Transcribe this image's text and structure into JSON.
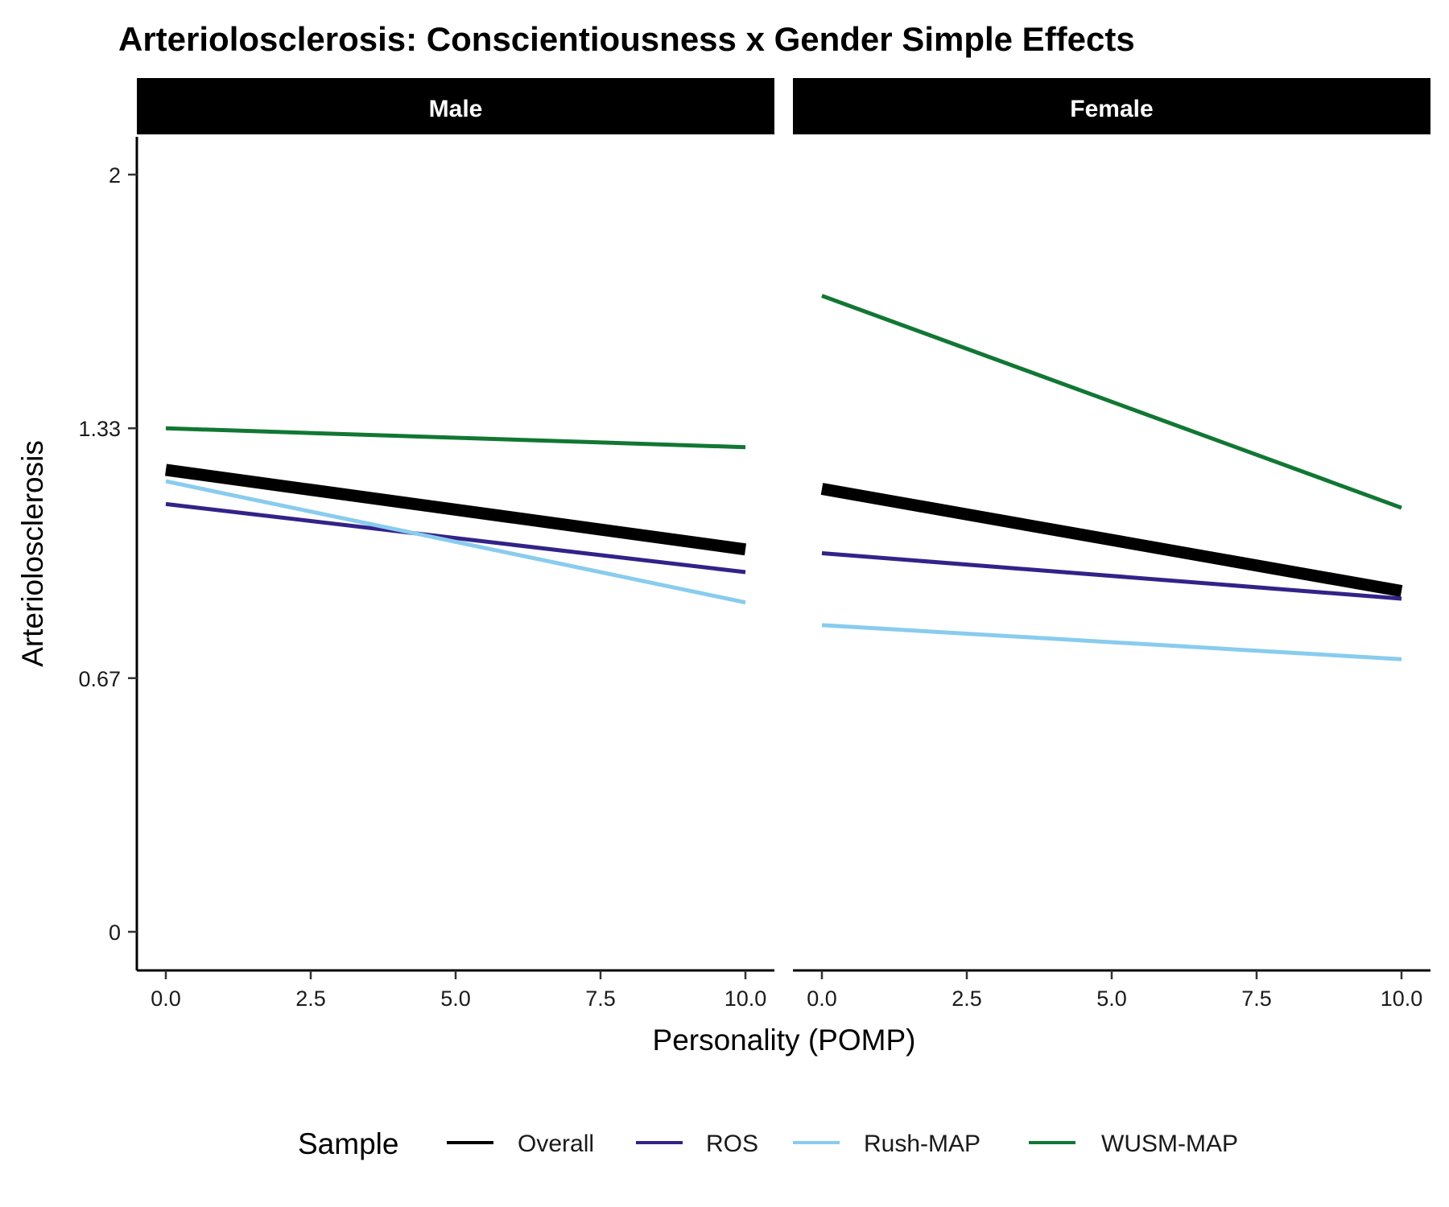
{
  "chart_data": {
    "type": "line",
    "title": "Arteriolosclerosis: Conscientiousness x Gender Simple Effects",
    "xlabel": "Personality (POMP)",
    "ylabel": "Arteriolosclerosis",
    "xlim": [
      -0.5,
      10.5
    ],
    "ylim": [
      -0.1,
      2.1
    ],
    "x_ticks": [
      0,
      2.5,
      5,
      7.5,
      10
    ],
    "x_tick_labels": [
      "0.0",
      "2.5",
      "5.0",
      "7.5",
      "10.0"
    ],
    "y_ticks": [
      0,
      0.67,
      1.33,
      2
    ],
    "y_tick_labels": [
      "0",
      "0.67",
      "1.33",
      "2"
    ],
    "grid": false,
    "legend_title": "Sample",
    "legend_position": "bottom",
    "panels": [
      {
        "name": "Male",
        "series": [
          {
            "name": "Overall",
            "color": "#000000",
            "x": [
              0,
              10
            ],
            "y": [
              1.22,
              1.01
            ]
          },
          {
            "name": "ROS",
            "color": "#332288",
            "x": [
              0,
              10
            ],
            "y": [
              1.13,
              0.95
            ]
          },
          {
            "name": "Rush-MAP",
            "color": "#88CCEE",
            "x": [
              0,
              10
            ],
            "y": [
              1.19,
              0.87
            ]
          },
          {
            "name": "WUSM-MAP",
            "color": "#117733",
            "x": [
              0,
              10
            ],
            "y": [
              1.33,
              1.28
            ]
          }
        ]
      },
      {
        "name": "Female",
        "series": [
          {
            "name": "Overall",
            "color": "#000000",
            "x": [
              0,
              10
            ],
            "y": [
              1.17,
              0.9
            ]
          },
          {
            "name": "ROS",
            "color": "#332288",
            "x": [
              0,
              10
            ],
            "y": [
              1.0,
              0.88
            ]
          },
          {
            "name": "Rush-MAP",
            "color": "#88CCEE",
            "x": [
              0,
              10
            ],
            "y": [
              0.81,
              0.72
            ]
          },
          {
            "name": "WUSM-MAP",
            "color": "#117733",
            "x": [
              0,
              10
            ],
            "y": [
              1.68,
              1.12
            ]
          }
        ]
      }
    ],
    "legend": [
      {
        "name": "Overall",
        "color": "#000000"
      },
      {
        "name": "ROS",
        "color": "#332288"
      },
      {
        "name": "Rush-MAP",
        "color": "#88CCEE"
      },
      {
        "name": "WUSM-MAP",
        "color": "#117733"
      }
    ]
  }
}
